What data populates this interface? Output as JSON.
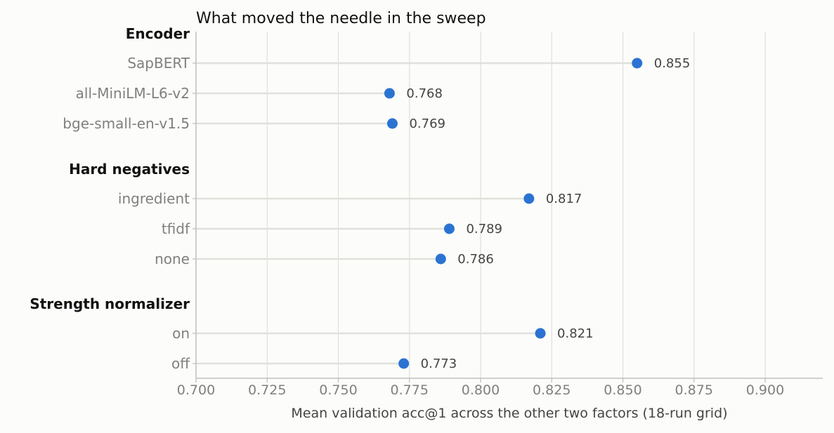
{
  "chart_data": {
    "type": "scatter",
    "title": "What moved the needle in the sweep",
    "xlabel": "Mean validation acc@1 across the other two factors (18-run grid)",
    "ylabel": "",
    "xlim": [
      0.7,
      0.92
    ],
    "xticks": [
      "0.700",
      "0.725",
      "0.750",
      "0.775",
      "0.800",
      "0.825",
      "0.850",
      "0.875",
      "0.900"
    ],
    "grid": "vertical",
    "groups": [
      {
        "name": "Encoder",
        "items": [
          {
            "label": "SapBERT",
            "value": 0.855,
            "value_label": "0.855"
          },
          {
            "label": "all-MiniLM-L6-v2",
            "value": 0.768,
            "value_label": "0.768"
          },
          {
            "label": "bge-small-en-v1.5",
            "value": 0.769,
            "value_label": "0.769"
          }
        ]
      },
      {
        "name": "Hard negatives",
        "items": [
          {
            "label": "ingredient",
            "value": 0.817,
            "value_label": "0.817"
          },
          {
            "label": "tfidf",
            "value": 0.789,
            "value_label": "0.789"
          },
          {
            "label": "none",
            "value": 0.786,
            "value_label": "0.786"
          }
        ]
      },
      {
        "name": "Strength normalizer",
        "items": [
          {
            "label": "on",
            "value": 0.821,
            "value_label": "0.821"
          },
          {
            "label": "off",
            "value": 0.773,
            "value_label": "0.773"
          }
        ]
      }
    ],
    "colors": {
      "point": "#2b73d2",
      "stem": "#e0e0dc",
      "grid": "#e0e0dc",
      "axis": "#c0c0c0"
    }
  }
}
